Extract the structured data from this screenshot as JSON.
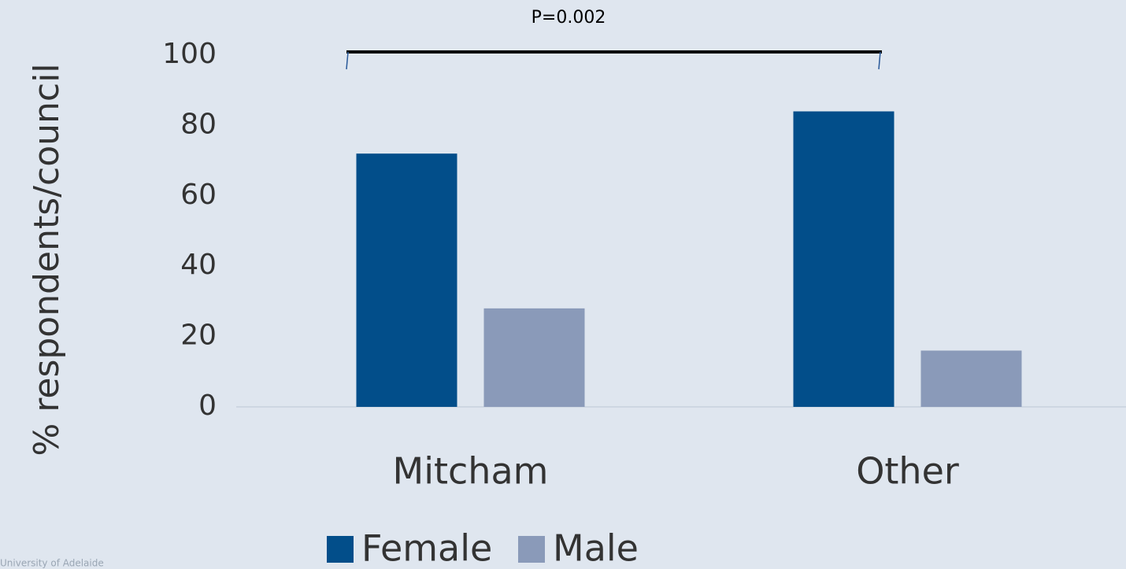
{
  "chart_data": {
    "type": "bar",
    "y_label": "% respondents/council",
    "annotation": "P=0.002",
    "source": "University of Adelaide",
    "categories": [
      "Mitcham",
      "Other"
    ],
    "series": [
      {
        "name": "Female",
        "color": "#024e8a",
        "values": [
          72,
          84
        ]
      },
      {
        "name": "Male",
        "color": "#8a9ab9",
        "values": [
          28,
          16
        ]
      }
    ],
    "ylim": [
      0,
      100
    ],
    "yticks": [
      0,
      20,
      40,
      60,
      80,
      100
    ],
    "grid": false,
    "legend": "bottom"
  }
}
